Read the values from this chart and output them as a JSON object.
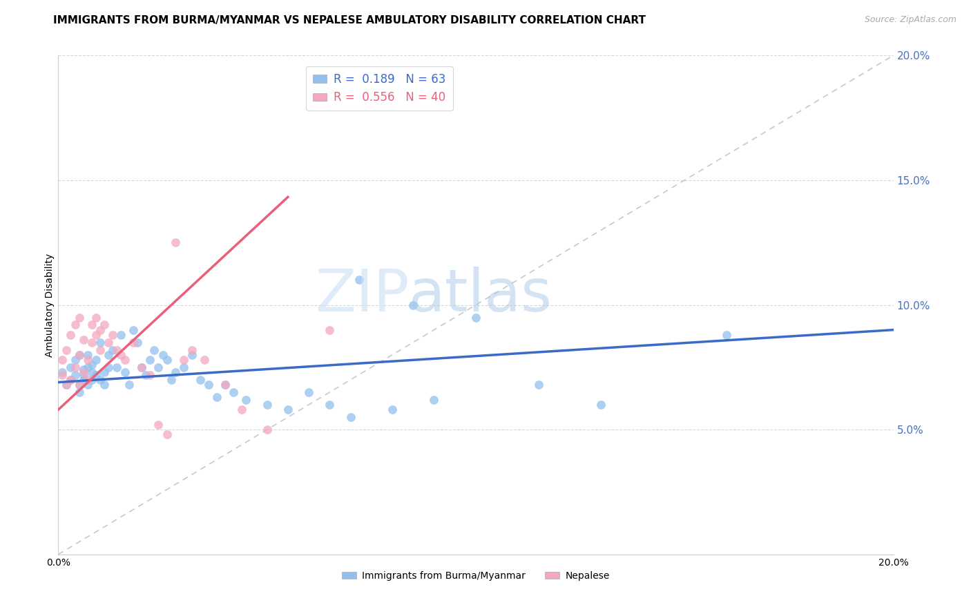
{
  "title": "IMMIGRANTS FROM BURMA/MYANMAR VS NEPALESE AMBULATORY DISABILITY CORRELATION CHART",
  "source": "Source: ZipAtlas.com",
  "ylabel": "Ambulatory Disability",
  "xlim": [
    0.0,
    0.2
  ],
  "ylim": [
    0.0,
    0.2
  ],
  "right_yticks": [
    0.05,
    0.1,
    0.15,
    0.2
  ],
  "right_yticklabels": [
    "5.0%",
    "10.0%",
    "15.0%",
    "20.0%"
  ],
  "xtick_vals": [
    0.0,
    0.2
  ],
  "xtick_labels": [
    "0.0%",
    "20.0%"
  ],
  "legend_blue_r": "0.189",
  "legend_blue_n": "63",
  "legend_pink_r": "0.556",
  "legend_pink_n": "40",
  "legend_label_blue": "Immigrants from Burma/Myanmar",
  "legend_label_pink": "Nepalese",
  "blue_color": "#92c0ed",
  "pink_color": "#f4a7be",
  "blue_line_color": "#3a6bc9",
  "pink_line_color": "#e8607a",
  "diag_line_color": "#c8c8c8",
  "grid_color": "#d8d8d8",
  "right_axis_color": "#4472c4",
  "title_fontsize": 11,
  "axis_label_fontsize": 10,
  "tick_fontsize": 10,
  "legend_fontsize": 12,
  "watermark_zip": "ZIP",
  "watermark_atlas": "atlas",
  "blue_slope": 0.105,
  "blue_intercept": 0.069,
  "pink_slope": 1.55,
  "pink_intercept": 0.058,
  "blue_x": [
    0.001,
    0.002,
    0.003,
    0.003,
    0.004,
    0.004,
    0.005,
    0.005,
    0.005,
    0.006,
    0.006,
    0.006,
    0.007,
    0.007,
    0.007,
    0.008,
    0.008,
    0.008,
    0.009,
    0.009,
    0.01,
    0.01,
    0.011,
    0.011,
    0.012,
    0.012,
    0.013,
    0.014,
    0.015,
    0.016,
    0.017,
    0.018,
    0.019,
    0.02,
    0.021,
    0.022,
    0.023,
    0.024,
    0.025,
    0.026,
    0.027,
    0.028,
    0.03,
    0.032,
    0.034,
    0.036,
    0.038,
    0.04,
    0.042,
    0.045,
    0.05,
    0.055,
    0.06,
    0.065,
    0.07,
    0.08,
    0.09,
    0.1,
    0.115,
    0.13,
    0.072,
    0.085,
    0.16
  ],
  "blue_y": [
    0.073,
    0.068,
    0.075,
    0.07,
    0.072,
    0.078,
    0.065,
    0.068,
    0.08,
    0.07,
    0.074,
    0.072,
    0.068,
    0.075,
    0.08,
    0.07,
    0.073,
    0.076,
    0.072,
    0.078,
    0.085,
    0.07,
    0.073,
    0.068,
    0.08,
    0.075,
    0.082,
    0.075,
    0.088,
    0.073,
    0.068,
    0.09,
    0.085,
    0.075,
    0.072,
    0.078,
    0.082,
    0.075,
    0.08,
    0.078,
    0.07,
    0.073,
    0.075,
    0.08,
    0.07,
    0.068,
    0.063,
    0.068,
    0.065,
    0.062,
    0.06,
    0.058,
    0.065,
    0.06,
    0.055,
    0.058,
    0.062,
    0.095,
    0.068,
    0.06,
    0.11,
    0.1,
    0.088
  ],
  "pink_x": [
    0.001,
    0.001,
    0.002,
    0.002,
    0.003,
    0.003,
    0.004,
    0.004,
    0.005,
    0.005,
    0.005,
    0.006,
    0.006,
    0.007,
    0.007,
    0.008,
    0.008,
    0.009,
    0.009,
    0.01,
    0.01,
    0.011,
    0.012,
    0.013,
    0.014,
    0.015,
    0.016,
    0.018,
    0.02,
    0.022,
    0.024,
    0.026,
    0.028,
    0.03,
    0.032,
    0.035,
    0.04,
    0.044,
    0.05,
    0.065
  ],
  "pink_y": [
    0.072,
    0.078,
    0.068,
    0.082,
    0.07,
    0.088,
    0.075,
    0.092,
    0.068,
    0.08,
    0.095,
    0.073,
    0.086,
    0.078,
    0.07,
    0.085,
    0.092,
    0.095,
    0.088,
    0.09,
    0.082,
    0.092,
    0.085,
    0.088,
    0.082,
    0.08,
    0.078,
    0.085,
    0.075,
    0.072,
    0.052,
    0.048,
    0.125,
    0.078,
    0.082,
    0.078,
    0.068,
    0.058,
    0.05,
    0.09
  ]
}
